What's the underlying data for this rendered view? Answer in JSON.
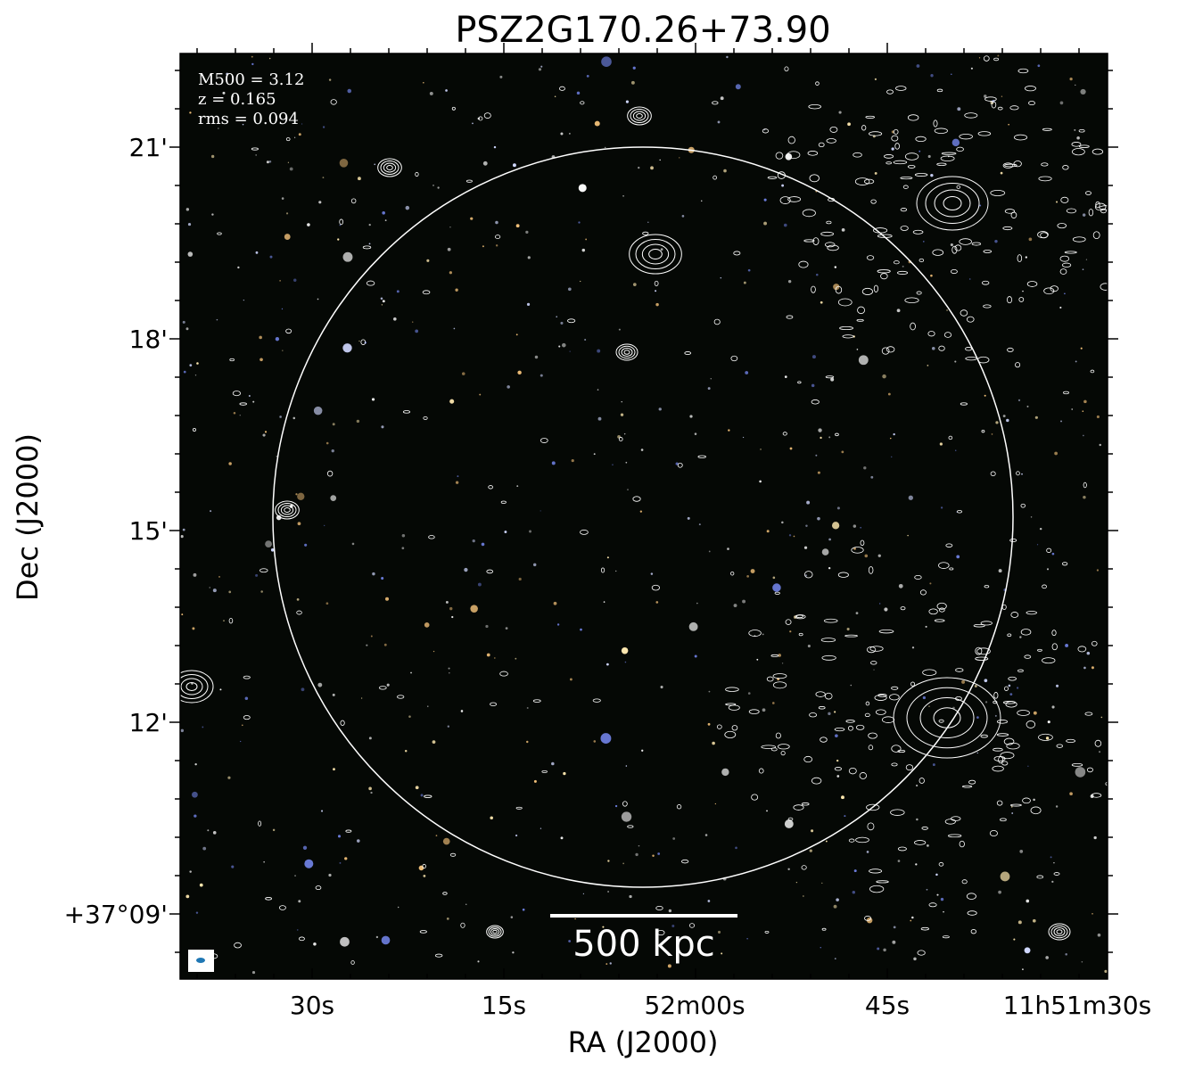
{
  "chart_data": {
    "type": "image",
    "title": "PSZ2G170.26+73.90",
    "annotations": [
      "M500 = 3.12",
      "z = 0.165",
      "rms = 0.094"
    ],
    "x_label": "RA (J2000)",
    "y_label": "Dec (J2000)",
    "x_tick_labels": [
      "30s",
      "15s",
      "52m00s",
      "45s",
      "11h51m30s"
    ],
    "y_tick_labels": [
      "21'",
      "18'",
      "15'",
      "12'",
      "+37°09'"
    ],
    "scale_bar_label": "500 kpc"
  }
}
